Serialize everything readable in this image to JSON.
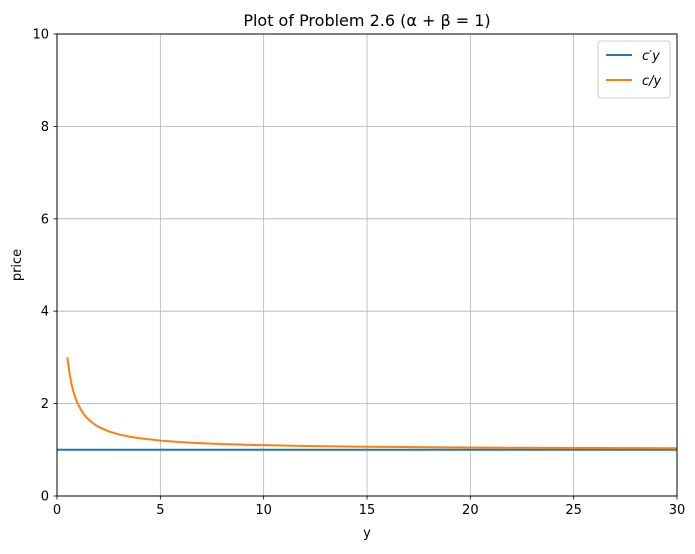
{
  "chart_data": {
    "type": "line",
    "title": "Plot of Problem 2.6 (α + β = 1)",
    "xlabel": "y",
    "ylabel": "price",
    "xlim": [
      0,
      30
    ],
    "ylim": [
      0,
      10
    ],
    "x_ticks": [
      "0",
      "5",
      "10",
      "15",
      "20",
      "25",
      "30"
    ],
    "y_ticks": [
      "0",
      "2",
      "4",
      "6",
      "8",
      "10"
    ],
    "grid": true,
    "legend_position": "top-right",
    "series": [
      {
        "name": "c′y",
        "color": "#1f77b4",
        "x": [
          0,
          30
        ],
        "y": [
          1,
          1
        ]
      },
      {
        "name": "c/y",
        "color": "#ff7f0e",
        "x": [
          0.5,
          0.6,
          0.7,
          0.8,
          0.9,
          1,
          1.2,
          1.4,
          1.6,
          1.8,
          2,
          2.5,
          3,
          3.5,
          4,
          5,
          6,
          7,
          8,
          9,
          10,
          12,
          14,
          16,
          18,
          20,
          22,
          24,
          26,
          28,
          30
        ],
        "y": [
          3.0,
          2.667,
          2.429,
          2.25,
          2.111,
          2.0,
          1.833,
          1.714,
          1.625,
          1.556,
          1.5,
          1.4,
          1.333,
          1.286,
          1.25,
          1.2,
          1.167,
          1.143,
          1.125,
          1.111,
          1.1,
          1.083,
          1.071,
          1.063,
          1.056,
          1.05,
          1.045,
          1.042,
          1.038,
          1.036,
          1.033
        ]
      }
    ]
  }
}
